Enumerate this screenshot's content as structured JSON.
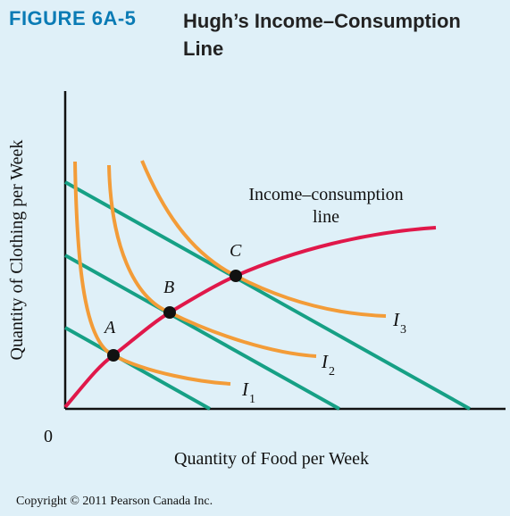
{
  "figure": {
    "label": "FIGURE 6A-5",
    "title": "Hugh’s Income–Consumption Line"
  },
  "axes": {
    "y_label": "Quantity of Clothing per Week",
    "x_label": "Quantity of Food per Week",
    "origin_label": "0"
  },
  "curve_label": {
    "line1": "Income–consumption",
    "line2": "line"
  },
  "points": {
    "a": "A",
    "b": "B",
    "c": "C"
  },
  "indifference_labels": {
    "i1": "I",
    "i1_sub": "1",
    "i2": "I",
    "i2_sub": "2",
    "i3": "I",
    "i3_sub": "3"
  },
  "colors": {
    "budget_line": "#16a085",
    "indifference_curve": "#f39c38",
    "income_consumption": "#e0184a",
    "point": "#111111",
    "background": "#dff0f8"
  },
  "copyright": "Copyright © 2011 Pearson Canada Inc."
}
